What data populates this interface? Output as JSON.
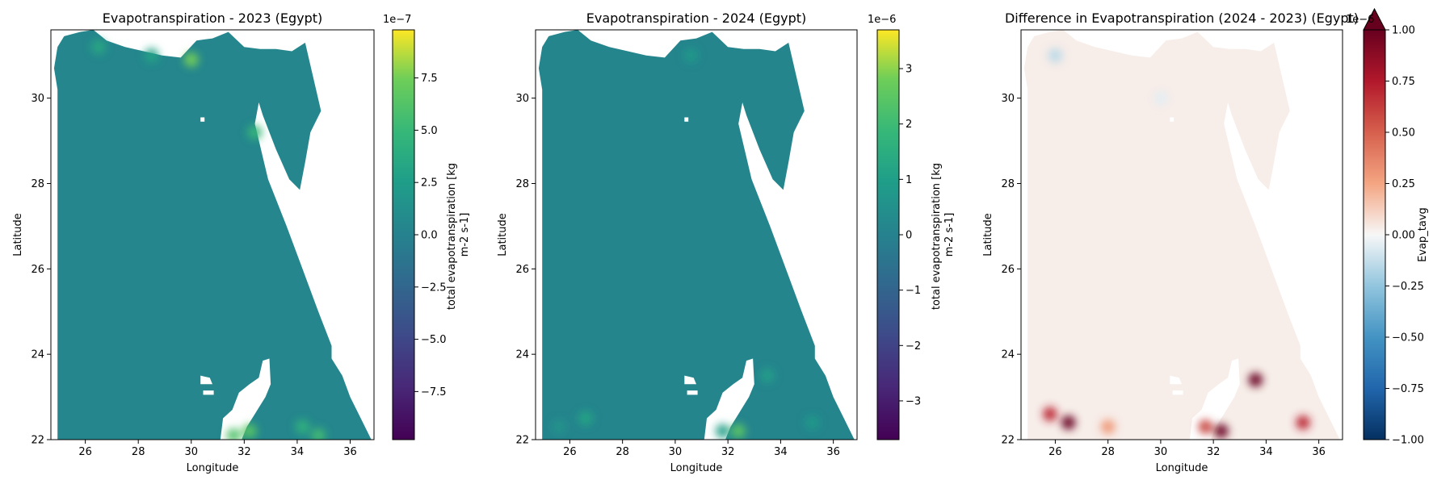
{
  "chart_data": [
    {
      "type": "heatmap",
      "title": "Evapotranspiration - 2023 (Egypt)",
      "xlabel": "Longitude",
      "ylabel": "Latitude",
      "xlim": [
        24.7,
        36.9
      ],
      "ylim": [
        22.0,
        31.6
      ],
      "xticks": [
        26,
        28,
        30,
        32,
        34,
        36
      ],
      "yticks": [
        22,
        24,
        26,
        28,
        30
      ],
      "colormap": "viridis",
      "colorbar": {
        "label": "total evapotranspiration [kg m-2 s-1]",
        "label_lines": [
          "total evapotranspiration [kg",
          "m-2 s-1]"
        ],
        "range": [
          -9.8,
          9.8
        ],
        "ticks": [
          -7.5,
          -5.0,
          -2.5,
          0.0,
          2.5,
          5.0,
          7.5
        ],
        "tick_labels": [
          "−7.5",
          "−5.0",
          "−2.5",
          "0.0",
          "2.5",
          "5.0",
          "7.5"
        ],
        "exponent": "1e−7",
        "extend_max": false
      },
      "background_value": 0.4,
      "hotspots": [
        {
          "lon": 30.0,
          "lat": 30.9,
          "value": 7.5
        },
        {
          "lon": 32.2,
          "lat": 22.2,
          "value": 6.5
        },
        {
          "lon": 31.6,
          "lat": 22.1,
          "value": 6.0
        },
        {
          "lon": 34.8,
          "lat": 22.1,
          "value": 5.5
        },
        {
          "lon": 32.4,
          "lat": 29.2,
          "value": 5.0
        },
        {
          "lon": 34.2,
          "lat": 22.3,
          "value": 4.5
        },
        {
          "lon": 26.5,
          "lat": 31.2,
          "value": 3.5
        },
        {
          "lon": 28.5,
          "lat": 31.0,
          "value": 3.0
        }
      ]
    },
    {
      "type": "heatmap",
      "title": "Evapotranspiration - 2024 (Egypt)",
      "xlabel": "Longitude",
      "ylabel": "Latitude",
      "xlim": [
        24.7,
        36.9
      ],
      "ylim": [
        22.0,
        31.6
      ],
      "xticks": [
        26,
        28,
        30,
        32,
        34,
        36
      ],
      "yticks": [
        22,
        24,
        26,
        28,
        30
      ],
      "colormap": "viridis",
      "colorbar": {
        "label": "total evapotranspiration [kg m-2 s-1]",
        "label_lines": [
          "total evapotranspiration [kg",
          "m-2 s-1]"
        ],
        "range": [
          -3.7,
          3.7
        ],
        "ticks": [
          -3,
          -2,
          -1,
          0,
          1,
          2,
          3
        ],
        "tick_labels": [
          "−3",
          "−2",
          "−1",
          "0",
          "1",
          "2",
          "3"
        ],
        "exponent": "1e−6",
        "extend_max": false
      },
      "background_value": 0.1,
      "hotspots": [
        {
          "lon": 32.4,
          "lat": 22.2,
          "value": 2.5
        },
        {
          "lon": 26.6,
          "lat": 22.5,
          "value": 1.2
        },
        {
          "lon": 33.5,
          "lat": 23.5,
          "value": 1.0
        },
        {
          "lon": 31.8,
          "lat": 22.2,
          "value": 1.0
        },
        {
          "lon": 35.2,
          "lat": 22.4,
          "value": 0.8
        },
        {
          "lon": 30.6,
          "lat": 31.0,
          "value": 0.8
        },
        {
          "lon": 25.6,
          "lat": 22.3,
          "value": 0.6
        }
      ]
    },
    {
      "type": "heatmap",
      "title": "Difference in Evapotranspiration (2024 - 2023) (Egypt)",
      "xlabel": "Longitude",
      "ylabel": "Latitude",
      "xlim": [
        24.7,
        36.9
      ],
      "ylim": [
        22.0,
        31.6
      ],
      "xticks": [
        26,
        28,
        30,
        32,
        34,
        36
      ],
      "yticks": [
        22,
        24,
        26,
        28,
        30
      ],
      "colormap": "RdBu_r",
      "colorbar": {
        "label": "Evap_tavg",
        "label_lines": [
          "Evap_tavg"
        ],
        "range": [
          -1.0,
          1.0
        ],
        "ticks": [
          -1.0,
          -0.75,
          -0.5,
          -0.25,
          0.0,
          0.25,
          0.5,
          0.75,
          1.0
        ],
        "tick_labels": [
          "−1.00",
          "−0.75",
          "−0.50",
          "−0.25",
          "0.00",
          "0.25",
          "0.50",
          "0.75",
          "1.00"
        ],
        "exponent": "1e−6",
        "extend_max": true
      },
      "background_value": 0.03,
      "hotspots": [
        {
          "lon": 26.5,
          "lat": 22.4,
          "value": 1.0
        },
        {
          "lon": 25.8,
          "lat": 22.6,
          "value": 0.7
        },
        {
          "lon": 33.6,
          "lat": 23.4,
          "value": 1.0
        },
        {
          "lon": 32.3,
          "lat": 22.2,
          "value": 1.0
        },
        {
          "lon": 35.4,
          "lat": 22.4,
          "value": 0.7
        },
        {
          "lon": 31.7,
          "lat": 22.3,
          "value": 0.6
        },
        {
          "lon": 28.0,
          "lat": 22.3,
          "value": 0.3
        },
        {
          "lon": 26.0,
          "lat": 31.0,
          "value": -0.15
        },
        {
          "lon": 30.0,
          "lat": 30.0,
          "value": -0.05
        }
      ]
    }
  ]
}
